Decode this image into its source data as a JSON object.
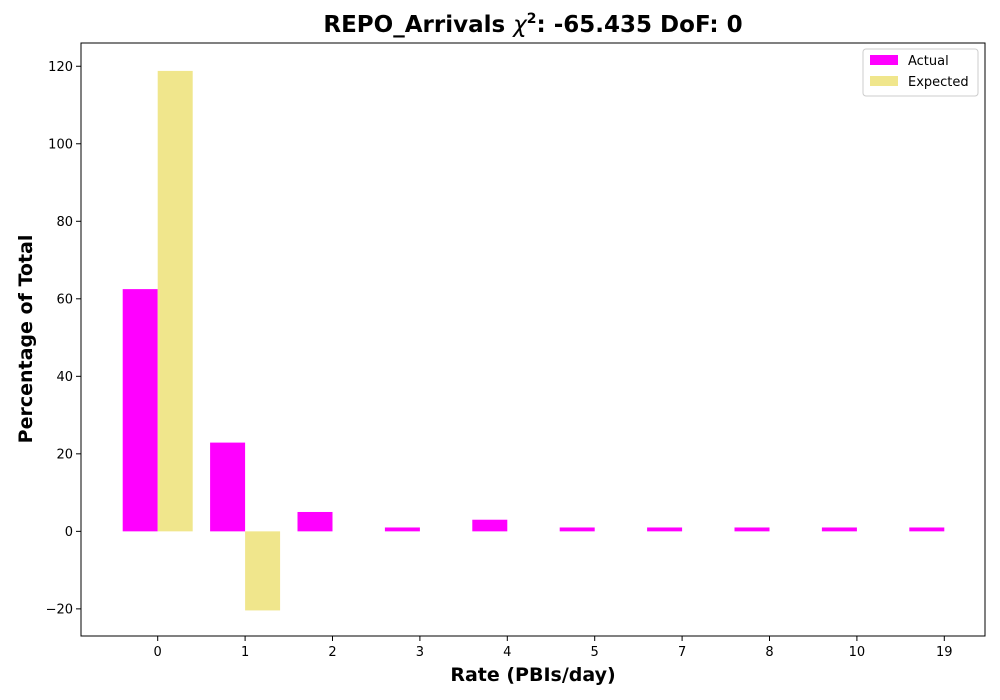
{
  "chart_data": {
    "type": "bar",
    "title_prefix": "REPO_Arrivals ",
    "title_chi": "χ",
    "title_sup": "2",
    "title_suffix": ": -65.435 DoF: 0",
    "xlabel": "Rate (PBIs/day)",
    "ylabel": "Percentage of Total",
    "categories": [
      "0",
      "1",
      "2",
      "3",
      "4",
      "5",
      "7",
      "8",
      "10",
      "19"
    ],
    "series": [
      {
        "name": "Actual",
        "color": "#ff00ff",
        "values": [
          62.5,
          22.9,
          5.0,
          1.0,
          3.0,
          1.0,
          1.0,
          1.0,
          1.0,
          1.0
        ]
      },
      {
        "name": "Expected",
        "color": "#f0e68c",
        "values": [
          118.8,
          -20.4,
          0,
          0,
          0,
          0,
          0,
          0,
          0,
          0
        ]
      }
    ],
    "ylim": [
      -27,
      126
    ],
    "yticks": [
      -20,
      0,
      20,
      40,
      60,
      80,
      100,
      120
    ],
    "grid": false,
    "legend_position": "top-right"
  }
}
